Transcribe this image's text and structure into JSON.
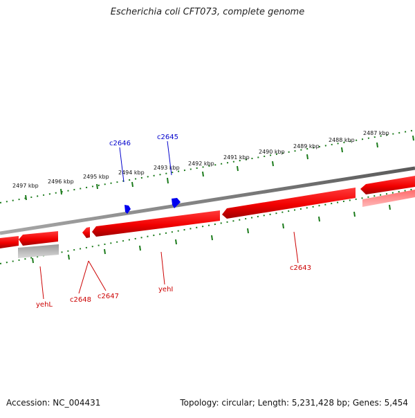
{
  "title": "Escherichia coli CFT073, complete genome",
  "footer": {
    "accession": "Accession: NC_004431",
    "summary": "Topology: circular; Length: 5,231,428 bp; Genes: 5,454"
  },
  "ticks": [
    {
      "label": "2497 kbp"
    },
    {
      "label": "2496 kbp"
    },
    {
      "label": "2495 kbp"
    },
    {
      "label": "2494 kbp"
    },
    {
      "label": "2493 kbp"
    },
    {
      "label": "2492 kbp"
    },
    {
      "label": "2491 kbp"
    },
    {
      "label": "2490 kbp"
    },
    {
      "label": "2489 kbp"
    },
    {
      "label": "2488 kbp"
    },
    {
      "label": "2487 kbp"
    }
  ],
  "gene_labels": {
    "c2646": "c2646",
    "c2645": "c2645",
    "yehL": "yehL",
    "c2648": "c2648",
    "c2647": "c2647",
    "yehI": "yehI",
    "c2643": "c2643"
  },
  "colors": {
    "backbone": "#8a8a8a",
    "gene_reverse": "#ff0000",
    "gene_forward": "#0000ff",
    "pseudo": "#b0b0b0",
    "tick": "#1a7a1a",
    "reverse_label": "#cc0000",
    "forward_label": "#0000cc"
  }
}
